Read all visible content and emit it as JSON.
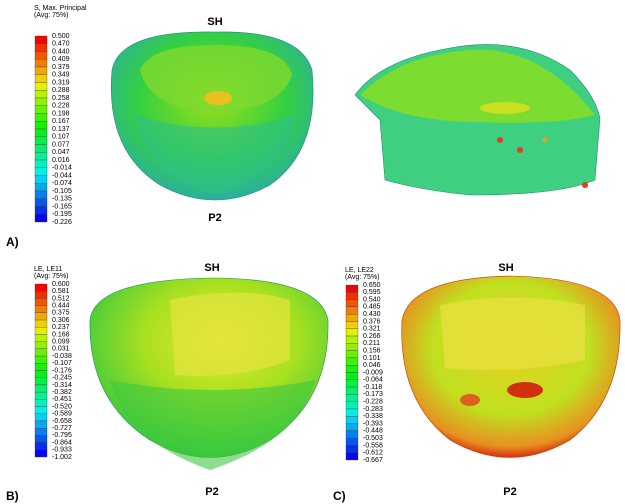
{
  "panels": [
    {
      "label": "A)",
      "top_label": "SH",
      "bottom_label": "P2",
      "legend": {
        "title": "S, Max. Principal",
        "subtitle": "(Avg: 75%)",
        "values": [
          "0.500",
          "0.470",
          "0.440",
          "0.409",
          "0.379",
          "0.349",
          "0.319",
          "0.288",
          "0.258",
          "0.228",
          "0.198",
          "0.167",
          "0.137",
          "0.107",
          "0.077",
          "0.047",
          "0.016",
          "-0.014",
          "-0.044",
          "-0.074",
          "-0.105",
          "-0.135",
          "-0.165",
          "-0.195",
          "-0.226"
        ]
      }
    },
    {
      "label": "B)",
      "top_label": "SH",
      "bottom_label": "P2",
      "legend": {
        "title": "LE, LE11",
        "subtitle": "(Avg: 75%)",
        "values": [
          "0.600",
          "0.581",
          "0.512",
          "0.444",
          "0.375",
          "0.306",
          "0.237",
          "0.168",
          "0.099",
          "0.031",
          "-0.038",
          "-0.107",
          "-0.176",
          "-0.245",
          "-0.314",
          "-0.382",
          "-0.451",
          "-0.520",
          "-0.589",
          "-0.658",
          "-0.727",
          "-0.795",
          "-0.864",
          "-0.933",
          "-1.002"
        ]
      }
    },
    {
      "label": "C)",
      "top_label": "SH",
      "bottom_label": "P2",
      "legend": {
        "title": "LE, LE22",
        "subtitle": "(Avg: 75%)",
        "values": [
          "0.650",
          "0.595",
          "0.540",
          "0.485",
          "0.430",
          "0.376",
          "0.321",
          "0.266",
          "0.211",
          "0.156",
          "0.101",
          "0.046",
          "-0.009",
          "-0.064",
          "-0.118",
          "-0.173",
          "-0.228",
          "-0.283",
          "-0.338",
          "-0.393",
          "-0.448",
          "-0.503",
          "-0.558",
          "-0.612",
          "-0.667"
        ]
      }
    }
  ]
}
